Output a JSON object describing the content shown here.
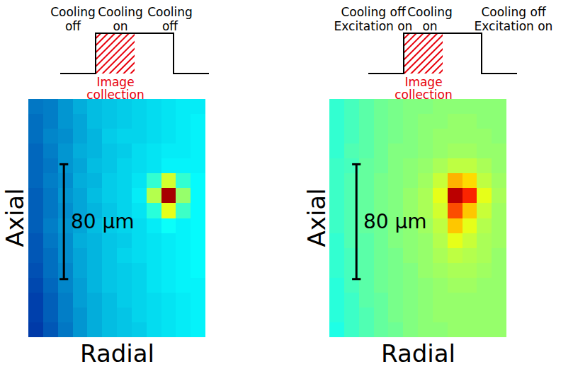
{
  "chart_data": [
    {
      "type": "heatmap",
      "xlabel": "Radial",
      "ylabel": "Axial",
      "tick_labels": false,
      "xlim": [
        0,
        123
      ],
      "ylim": [
        0,
        166
      ],
      "zlim": [
        0,
        100
      ],
      "cells": [
        [
          20,
          21,
          24,
          27,
          29,
          30,
          31,
          32,
          33,
          34,
          35,
          35
        ],
        [
          19,
          21,
          24,
          26,
          29,
          30,
          31,
          32,
          33,
          34,
          35,
          36
        ],
        [
          19,
          22,
          23,
          26,
          28,
          31,
          32,
          32,
          33,
          34,
          35,
          36
        ],
        [
          18,
          21,
          24,
          27,
          28,
          30,
          31,
          33,
          34,
          35,
          35,
          36
        ],
        [
          18,
          20,
          24,
          26,
          29,
          30,
          32,
          33,
          34,
          36,
          36,
          36
        ],
        [
          18,
          21,
          23,
          27,
          28,
          31,
          32,
          34,
          42,
          58,
          42,
          37
        ],
        [
          17,
          20,
          24,
          26,
          29,
          31,
          32,
          35,
          55,
          96,
          52,
          37
        ],
        [
          17,
          20,
          23,
          26,
          28,
          30,
          32,
          34,
          41,
          60,
          43,
          37
        ],
        [
          17,
          21,
          24,
          26,
          29,
          31,
          32,
          33,
          35,
          38,
          36,
          37
        ],
        [
          16,
          20,
          23,
          27,
          28,
          30,
          31,
          33,
          34,
          35,
          36,
          37
        ],
        [
          16,
          19,
          23,
          26,
          28,
          30,
          32,
          33,
          34,
          35,
          36,
          37
        ],
        [
          15,
          19,
          22,
          26,
          28,
          30,
          31,
          32,
          34,
          35,
          36,
          37
        ],
        [
          14,
          18,
          22,
          25,
          28,
          30,
          31,
          32,
          34,
          35,
          36,
          36
        ],
        [
          13,
          17,
          21,
          25,
          27,
          29,
          31,
          32,
          33,
          34,
          35,
          36
        ],
        [
          13,
          17,
          21,
          24,
          27,
          29,
          30,
          32,
          33,
          34,
          35,
          36
        ],
        [
          12,
          16,
          20,
          24,
          27,
          29,
          30,
          31,
          33,
          34,
          35,
          36
        ]
      ],
      "scale_bar": {
        "length": 80,
        "label": "80 µm",
        "x": 24.7,
        "y": 40.5
      },
      "timing": {
        "labels": [
          [
            "Cooling",
            "off"
          ],
          [
            "Cooling",
            "on"
          ],
          [
            "Cooling",
            "off"
          ]
        ],
        "window_label": [
          "Image",
          "collection"
        ]
      }
    },
    {
      "type": "heatmap",
      "xlabel": "Radial",
      "ylabel": "Axial",
      "tick_labels": false,
      "xlim": [
        0,
        123
      ],
      "ylim": [
        0,
        166
      ],
      "zlim": [
        0,
        100
      ],
      "cells": [
        [
          42,
          44,
          46,
          48,
          49,
          50,
          50,
          51,
          51,
          51,
          51,
          51
        ],
        [
          42,
          44,
          46,
          48,
          49,
          50,
          51,
          51,
          52,
          52,
          51,
          51
        ],
        [
          42,
          44,
          46,
          48,
          49,
          50,
          51,
          52,
          52,
          52,
          52,
          51
        ],
        [
          42,
          45,
          46,
          48,
          50,
          50,
          51,
          52,
          53,
          53,
          52,
          52
        ],
        [
          43,
          44,
          47,
          48,
          50,
          51,
          52,
          54,
          56,
          56,
          54,
          52
        ],
        [
          43,
          45,
          47,
          49,
          50,
          51,
          53,
          57,
          70,
          66,
          56,
          53
        ],
        [
          43,
          45,
          47,
          49,
          50,
          52,
          54,
          60,
          94,
          84,
          60,
          54
        ],
        [
          43,
          45,
          47,
          49,
          50,
          52,
          54,
          58,
          80,
          68,
          57,
          53
        ],
        [
          43,
          45,
          47,
          48,
          50,
          51,
          53,
          56,
          68,
          60,
          55,
          53
        ],
        [
          42,
          45,
          46,
          48,
          50,
          51,
          52,
          55,
          60,
          57,
          54,
          53
        ],
        [
          42,
          44,
          46,
          48,
          49,
          51,
          52,
          54,
          56,
          55,
          54,
          52
        ],
        [
          42,
          44,
          46,
          48,
          49,
          50,
          52,
          53,
          54,
          54,
          53,
          52
        ],
        [
          41,
          44,
          46,
          48,
          49,
          50,
          51,
          52,
          53,
          53,
          52,
          52
        ],
        [
          41,
          43,
          46,
          47,
          49,
          50,
          51,
          52,
          52,
          52,
          52,
          52
        ],
        [
          41,
          43,
          45,
          47,
          49,
          50,
          51,
          52,
          52,
          52,
          52,
          52
        ],
        [
          40,
          43,
          45,
          47,
          48,
          50,
          51,
          51,
          52,
          52,
          52,
          52
        ]
      ],
      "scale_bar": {
        "length": 80,
        "label": "80 µm",
        "x": 18.8,
        "y": 40.5
      },
      "timing": {
        "labels": [
          [
            "Cooling off",
            "Excitation on"
          ],
          [
            "Cooling",
            "on"
          ],
          [
            "Cooling off",
            "Excitation on"
          ]
        ],
        "window_label": [
          "Image",
          "collection"
        ]
      }
    }
  ]
}
